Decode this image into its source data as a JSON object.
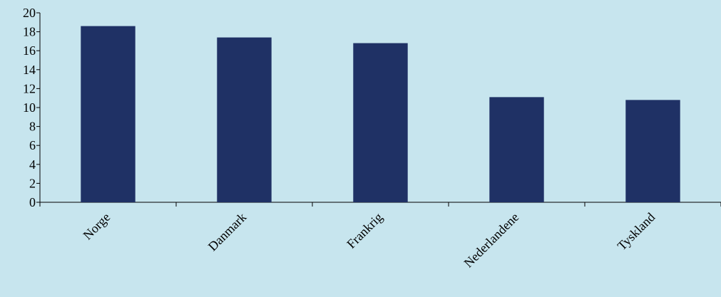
{
  "chart_data": {
    "type": "bar",
    "categories": [
      "Norge",
      "Danmark",
      "Frankrig",
      "Nederlandene",
      "Tyskland"
    ],
    "values": [
      18.6,
      17.4,
      16.8,
      11.1,
      10.8
    ],
    "title": "",
    "xlabel": "",
    "ylabel": "",
    "ylim": [
      0,
      20
    ],
    "yticks": [
      "0",
      "2",
      "4",
      "6",
      "8",
      "10",
      "12",
      "14",
      "16",
      "18",
      "20"
    ],
    "grid": false,
    "legend": "none"
  },
  "colors": {
    "background": "#c7e5ee",
    "bar": "#1f3165",
    "axis": "#000000"
  }
}
